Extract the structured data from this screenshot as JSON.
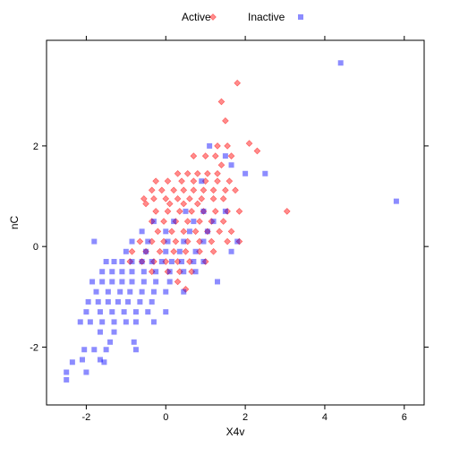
{
  "chart_data": {
    "type": "scatter",
    "title": "",
    "xlabel": "X4v",
    "ylabel": "nC",
    "xlim": [
      -3.0,
      6.5
    ],
    "ylim": [
      -3.15,
      4.1
    ],
    "x_ticks": [
      -2,
      0,
      2,
      4,
      6
    ],
    "y_ticks": [
      -2,
      0,
      2
    ],
    "grid": false,
    "legend_position": "top",
    "colors": {
      "active": "#ff0000",
      "inactive": "#0000ff"
    },
    "series": [
      {
        "name": "Active",
        "marker": "diamond",
        "color": "#ff0000",
        "points": [
          [
            1.8,
            3.25
          ],
          [
            1.4,
            2.88
          ],
          [
            1.5,
            2.5
          ],
          [
            2.1,
            2.05
          ],
          [
            2.3,
            1.9
          ],
          [
            1.3,
            2.0
          ],
          [
            1.55,
            2.0
          ],
          [
            0.7,
            1.8
          ],
          [
            1.0,
            1.8
          ],
          [
            1.25,
            1.8
          ],
          [
            1.4,
            1.62
          ],
          [
            1.65,
            1.8
          ],
          [
            0.3,
            1.45
          ],
          [
            0.55,
            1.45
          ],
          [
            0.8,
            1.45
          ],
          [
            1.05,
            1.45
          ],
          [
            1.3,
            1.45
          ],
          [
            -0.25,
            1.3
          ],
          [
            0.05,
            1.3
          ],
          [
            0.4,
            1.3
          ],
          [
            0.7,
            1.3
          ],
          [
            1.0,
            1.3
          ],
          [
            1.3,
            1.3
          ],
          [
            1.6,
            1.3
          ],
          [
            -0.35,
            1.12
          ],
          [
            -0.1,
            1.12
          ],
          [
            0.2,
            1.12
          ],
          [
            0.45,
            1.12
          ],
          [
            0.7,
            1.12
          ],
          [
            0.95,
            1.12
          ],
          [
            1.2,
            1.12
          ],
          [
            1.5,
            1.12
          ],
          [
            1.75,
            1.12
          ],
          [
            -0.55,
            0.95
          ],
          [
            -0.3,
            0.95
          ],
          [
            0.0,
            0.95
          ],
          [
            0.3,
            0.95
          ],
          [
            0.6,
            0.95
          ],
          [
            0.9,
            0.95
          ],
          [
            1.2,
            0.95
          ],
          [
            1.45,
            0.95
          ],
          [
            -0.5,
            0.85
          ],
          [
            0.1,
            0.85
          ],
          [
            0.45,
            0.85
          ],
          [
            0.8,
            0.85
          ],
          [
            -0.25,
            0.7
          ],
          [
            0.05,
            0.7
          ],
          [
            0.35,
            0.7
          ],
          [
            0.65,
            0.7
          ],
          [
            0.95,
            0.7
          ],
          [
            1.25,
            0.7
          ],
          [
            1.55,
            0.7
          ],
          [
            1.85,
            0.7
          ],
          [
            3.05,
            0.7
          ],
          [
            -0.35,
            0.5
          ],
          [
            -0.05,
            0.5
          ],
          [
            0.25,
            0.5
          ],
          [
            0.55,
            0.5
          ],
          [
            0.85,
            0.5
          ],
          [
            1.15,
            0.5
          ],
          [
            1.45,
            0.5
          ],
          [
            -0.2,
            0.3
          ],
          [
            0.15,
            0.3
          ],
          [
            0.45,
            0.3
          ],
          [
            0.75,
            0.3
          ],
          [
            1.05,
            0.3
          ],
          [
            1.35,
            0.3
          ],
          [
            1.65,
            0.3
          ],
          [
            -0.65,
            0.1
          ],
          [
            -0.35,
            0.1
          ],
          [
            -0.05,
            0.1
          ],
          [
            0.25,
            0.1
          ],
          [
            0.55,
            0.1
          ],
          [
            0.85,
            0.1
          ],
          [
            1.15,
            0.1
          ],
          [
            1.55,
            0.1
          ],
          [
            1.85,
            0.1
          ],
          [
            -0.85,
            -0.1
          ],
          [
            -0.5,
            -0.1
          ],
          [
            -0.15,
            -0.1
          ],
          [
            0.2,
            -0.1
          ],
          [
            0.5,
            -0.1
          ],
          [
            0.85,
            -0.1
          ],
          [
            1.2,
            -0.1
          ],
          [
            -0.9,
            -0.3
          ],
          [
            -0.6,
            -0.3
          ],
          [
            -0.3,
            -0.3
          ],
          [
            0.0,
            -0.3
          ],
          [
            0.3,
            -0.3
          ],
          [
            0.6,
            -0.3
          ],
          [
            1.0,
            -0.3
          ],
          [
            -0.35,
            -0.5
          ],
          [
            0.05,
            -0.5
          ],
          [
            0.35,
            -0.5
          ],
          [
            0.65,
            -0.5
          ],
          [
            0.3,
            -0.7
          ],
          [
            0.5,
            -0.85
          ]
        ]
      },
      {
        "name": "Inactive",
        "marker": "square",
        "color": "#0000ff",
        "points": [
          [
            4.4,
            3.65
          ],
          [
            5.8,
            0.9
          ],
          [
            2.0,
            1.45
          ],
          [
            2.5,
            1.45
          ],
          [
            1.65,
            1.62
          ],
          [
            1.1,
            2.0
          ],
          [
            1.5,
            1.8
          ],
          [
            0.9,
            1.3
          ],
          [
            1.5,
            0.7
          ],
          [
            0.95,
            0.7
          ],
          [
            0.5,
            0.7
          ],
          [
            -0.3,
            0.5
          ],
          [
            0.2,
            0.5
          ],
          [
            0.7,
            0.5
          ],
          [
            1.2,
            0.5
          ],
          [
            -0.6,
            0.3
          ],
          [
            0.0,
            0.3
          ],
          [
            0.6,
            0.3
          ],
          [
            1.05,
            0.3
          ],
          [
            -0.85,
            0.1
          ],
          [
            -0.45,
            0.1
          ],
          [
            0.05,
            0.1
          ],
          [
            0.45,
            0.1
          ],
          [
            0.95,
            0.1
          ],
          [
            1.8,
            0.1
          ],
          [
            -1.8,
            0.1
          ],
          [
            -1.0,
            -0.1
          ],
          [
            -0.5,
            -0.1
          ],
          [
            0.0,
            -0.1
          ],
          [
            0.35,
            -0.1
          ],
          [
            0.75,
            -0.1
          ],
          [
            1.65,
            -0.1
          ],
          [
            -1.5,
            -0.3
          ],
          [
            -1.3,
            -0.3
          ],
          [
            -1.1,
            -0.3
          ],
          [
            -0.85,
            -0.3
          ],
          [
            -0.6,
            -0.3
          ],
          [
            -0.35,
            -0.3
          ],
          [
            -0.1,
            -0.3
          ],
          [
            0.15,
            -0.3
          ],
          [
            0.4,
            -0.3
          ],
          [
            0.7,
            -0.3
          ],
          [
            0.95,
            -0.3
          ],
          [
            -1.6,
            -0.5
          ],
          [
            -1.35,
            -0.5
          ],
          [
            -1.1,
            -0.5
          ],
          [
            -0.85,
            -0.5
          ],
          [
            -0.55,
            -0.5
          ],
          [
            -0.25,
            -0.5
          ],
          [
            0.1,
            -0.5
          ],
          [
            0.45,
            -0.5
          ],
          [
            0.75,
            -0.5
          ],
          [
            -1.85,
            -0.7
          ],
          [
            -1.6,
            -0.7
          ],
          [
            -1.35,
            -0.7
          ],
          [
            -1.1,
            -0.7
          ],
          [
            -0.85,
            -0.7
          ],
          [
            -0.55,
            -0.7
          ],
          [
            -0.25,
            -0.7
          ],
          [
            0.1,
            -0.7
          ],
          [
            1.3,
            -0.7
          ],
          [
            -1.75,
            -0.9
          ],
          [
            -1.45,
            -0.9
          ],
          [
            -1.15,
            -0.9
          ],
          [
            -0.9,
            -0.9
          ],
          [
            -0.6,
            -0.9
          ],
          [
            -0.3,
            -0.9
          ],
          [
            0.0,
            -0.9
          ],
          [
            0.45,
            -0.9
          ],
          [
            -1.95,
            -1.1
          ],
          [
            -1.7,
            -1.1
          ],
          [
            -1.45,
            -1.1
          ],
          [
            -1.2,
            -1.1
          ],
          [
            -0.95,
            -1.1
          ],
          [
            -0.65,
            -1.1
          ],
          [
            -0.35,
            -1.1
          ],
          [
            -2.0,
            -1.3
          ],
          [
            -1.65,
            -1.3
          ],
          [
            -1.35,
            -1.3
          ],
          [
            -1.05,
            -1.3
          ],
          [
            -0.75,
            -1.3
          ],
          [
            -0.45,
            -1.3
          ],
          [
            0.0,
            -1.3
          ],
          [
            -2.15,
            -1.5
          ],
          [
            -1.9,
            -1.5
          ],
          [
            -1.6,
            -1.5
          ],
          [
            -1.3,
            -1.5
          ],
          [
            -1.0,
            -1.5
          ],
          [
            -0.75,
            -1.5
          ],
          [
            -0.3,
            -1.5
          ],
          [
            -1.65,
            -1.7
          ],
          [
            -1.3,
            -1.7
          ],
          [
            -1.4,
            -1.9
          ],
          [
            -0.8,
            -1.9
          ],
          [
            -2.05,
            -2.05
          ],
          [
            -1.8,
            -2.05
          ],
          [
            -1.5,
            -2.05
          ],
          [
            -0.75,
            -2.05
          ],
          [
            -2.1,
            -2.25
          ],
          [
            -1.65,
            -2.25
          ],
          [
            -2.35,
            -2.3
          ],
          [
            -1.55,
            -2.3
          ],
          [
            -2.5,
            -2.5
          ],
          [
            -2.0,
            -2.5
          ],
          [
            -2.5,
            -2.65
          ]
        ]
      }
    ]
  }
}
